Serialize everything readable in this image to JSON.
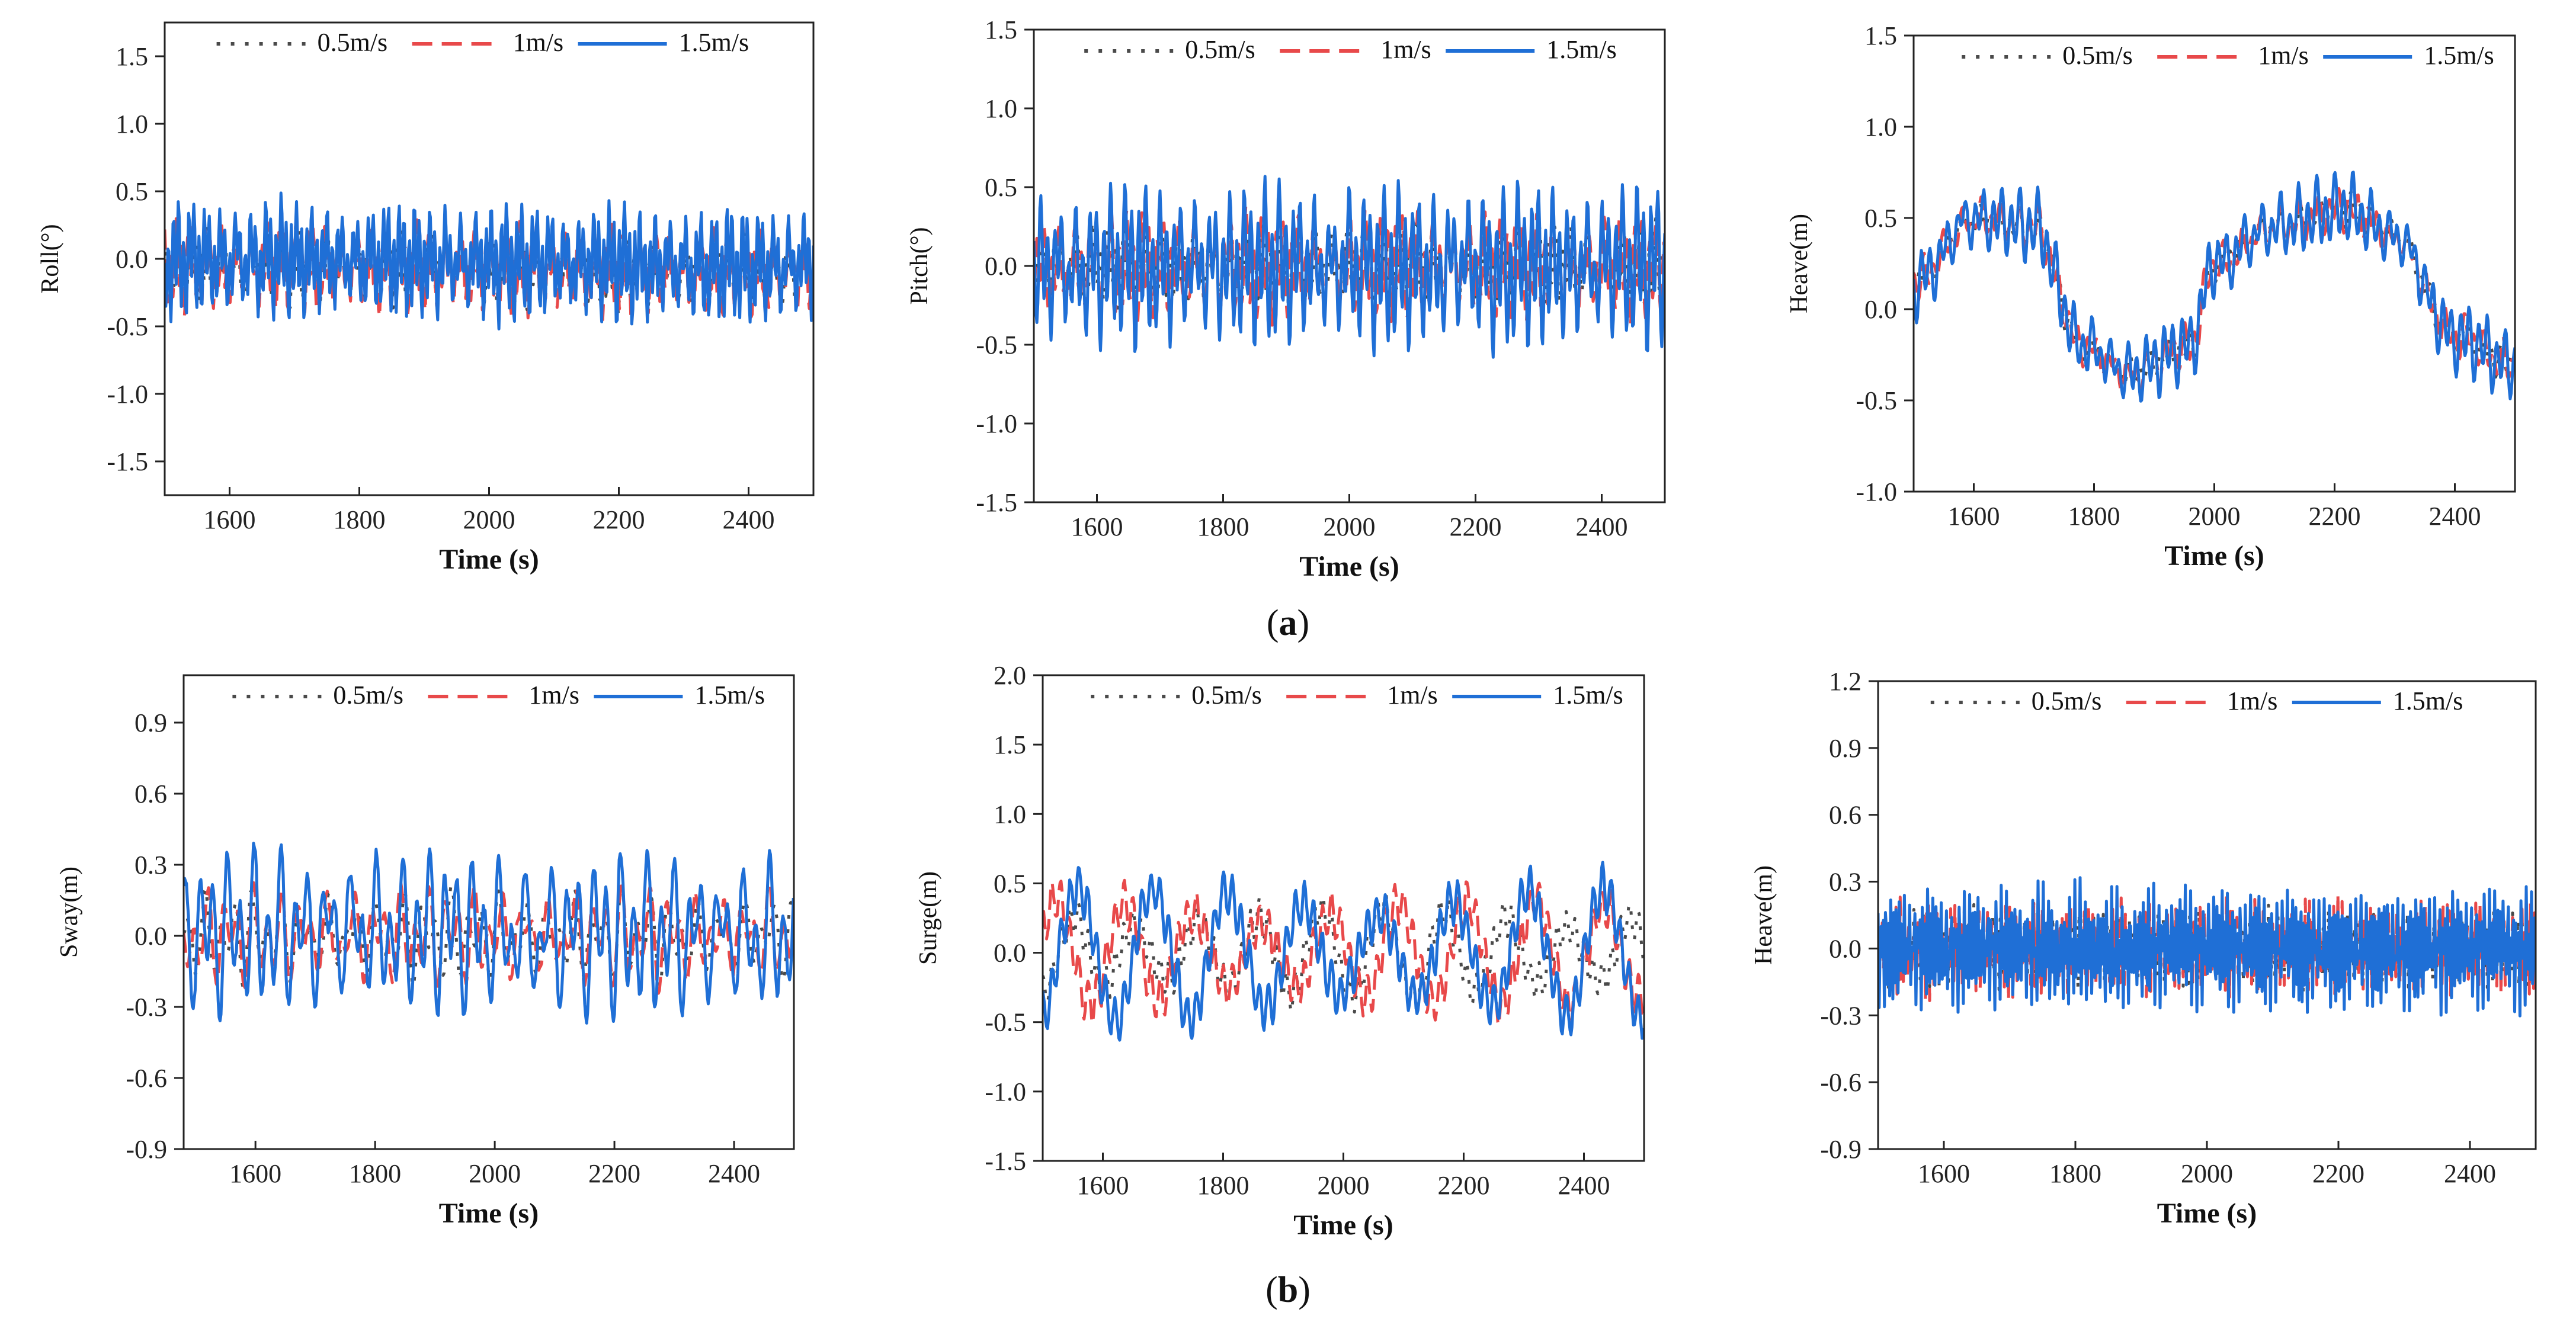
{
  "figure": {
    "caption_a": {
      "open": "(",
      "letter": "a",
      "close": ")"
    },
    "caption_b": {
      "open": "(",
      "letter": "b",
      "close": ")"
    }
  },
  "colors": {
    "s05": "#4a4a4a",
    "s1": "#e8494a",
    "s15": "#1f6fd6"
  },
  "chart_data": [
    {
      "id": "roll",
      "type": "line",
      "xlabel": "Time (s)",
      "ylabel": "Roll(°)",
      "xlim": [
        1500,
        2500
      ],
      "ylim": [
        -1.75,
        1.75
      ],
      "xticks": [
        1600,
        1800,
        2000,
        2200,
        2400
      ],
      "yticks": [
        -1.5,
        -1.0,
        -0.5,
        0.0,
        0.5,
        1.0,
        1.5
      ],
      "ytick_labels": [
        "-1.5",
        "-1.0",
        "-0.5",
        "0.0",
        "0.5",
        "1.0",
        "1.5"
      ],
      "legend": [
        "0.5m/s",
        "1m/s",
        "1.5m/s"
      ],
      "series": [
        {
          "name": "0.5m/s",
          "base": [
            [
              1500,
              -0.05
            ],
            [
              2500,
              -0.1
            ]
          ],
          "waves": [
            [
              0.18,
              9
            ],
            [
              0.12,
              23
            ]
          ],
          "freq": 0.32,
          "seed": 11
        },
        {
          "name": "1m/s",
          "base": [
            [
              1500,
              -0.05
            ],
            [
              2500,
              -0.1
            ]
          ],
          "waves": [
            [
              0.22,
              9
            ],
            [
              0.14,
              23
            ]
          ],
          "freq": 0.34,
          "seed": 23
        },
        {
          "name": "1.5m/s",
          "base": [
            [
              1500,
              0.0
            ],
            [
              2500,
              -0.05
            ]
          ],
          "waves": [
            [
              0.32,
              9
            ],
            [
              0.16,
              23
            ]
          ],
          "freq": 0.38,
          "seed": 37
        }
      ]
    },
    {
      "id": "pitch",
      "type": "line",
      "xlabel": "Time (s)",
      "ylabel": "Pitch(°)",
      "xlim": [
        1500,
        2500
      ],
      "ylim": [
        -1.5,
        1.5
      ],
      "xticks": [
        1600,
        1800,
        2000,
        2200,
        2400
      ],
      "yticks": [
        -1.5,
        -1.0,
        -0.5,
        0.0,
        0.5,
        1.0,
        1.5
      ],
      "ytick_labels": [
        "-1.5",
        "-1.0",
        "-0.5",
        "0.0",
        "0.5",
        "1.0",
        "1.5"
      ],
      "legend": [
        "0.5m/s",
        "1m/s",
        "1.5m/s"
      ],
      "series": [
        {
          "name": "0.5m/s",
          "base": [
            [
              1500,
              0.0
            ],
            [
              2500,
              0.0
            ]
          ],
          "waves": [
            [
              0.2,
              11
            ],
            [
              0.1,
              27
            ]
          ],
          "freq": 0.3,
          "seed": 41
        },
        {
          "name": "1m/s",
          "base": [
            [
              1500,
              0.0
            ],
            [
              2500,
              0.0
            ]
          ],
          "waves": [
            [
              0.25,
              11
            ],
            [
              0.12,
              27
            ]
          ],
          "freq": 0.31,
          "seed": 53
        },
        {
          "name": "1.5m/s",
          "base": [
            [
              1500,
              0.0
            ],
            [
              2500,
              0.0
            ]
          ],
          "waves": [
            [
              0.38,
              11
            ],
            [
              0.18,
              27
            ]
          ],
          "freq": 0.33,
          "seed": 67
        }
      ]
    },
    {
      "id": "heave_a",
      "type": "line",
      "xlabel": "Time (s)",
      "ylabel": "Heave(m)",
      "xlim": [
        1500,
        2500
      ],
      "ylim": [
        -1.0,
        1.5
      ],
      "xticks": [
        1600,
        1800,
        2000,
        2200,
        2400
      ],
      "yticks": [
        -1.0,
        -0.5,
        0.0,
        0.5,
        1.0,
        1.5
      ],
      "ytick_labels": [
        "-1.0",
        "-0.5",
        "0.0",
        "0.5",
        "1.0",
        "1.5"
      ],
      "legend": [
        "0.5m/s",
        "1m/s",
        "1.5m/s"
      ],
      "series": [
        {
          "name": "0.5m/s",
          "base": [
            [
              1500,
              0.15
            ],
            [
              1600,
              0.5
            ],
            [
              1700,
              0.45
            ],
            [
              1780,
              -0.2
            ],
            [
              1860,
              -0.35
            ],
            [
              1960,
              -0.2
            ],
            [
              2000,
              0.25
            ],
            [
              2100,
              0.45
            ],
            [
              2220,
              0.55
            ],
            [
              2300,
              0.4
            ],
            [
              2400,
              -0.15
            ],
            [
              2500,
              -0.3
            ]
          ],
          "waves": [
            [
              0.07,
              13
            ],
            [
              0.04,
              31
            ]
          ],
          "freq": 0.26,
          "seed": 71
        },
        {
          "name": "1m/s",
          "base": [
            [
              1500,
              0.15
            ],
            [
              1600,
              0.5
            ],
            [
              1700,
              0.45
            ],
            [
              1780,
              -0.2
            ],
            [
              1860,
              -0.35
            ],
            [
              1960,
              -0.2
            ],
            [
              2000,
              0.25
            ],
            [
              2100,
              0.45
            ],
            [
              2220,
              0.55
            ],
            [
              2300,
              0.4
            ],
            [
              2400,
              -0.15
            ],
            [
              2500,
              -0.3
            ]
          ],
          "waves": [
            [
              0.09,
              13
            ],
            [
              0.05,
              31
            ]
          ],
          "freq": 0.27,
          "seed": 83
        },
        {
          "name": "1.5m/s",
          "base": [
            [
              1500,
              0.15
            ],
            [
              1600,
              0.5
            ],
            [
              1700,
              0.45
            ],
            [
              1780,
              -0.2
            ],
            [
              1860,
              -0.35
            ],
            [
              1960,
              -0.2
            ],
            [
              2000,
              0.25
            ],
            [
              2100,
              0.45
            ],
            [
              2220,
              0.55
            ],
            [
              2300,
              0.4
            ],
            [
              2400,
              -0.15
            ],
            [
              2500,
              -0.3
            ]
          ],
          "waves": [
            [
              0.15,
              13
            ],
            [
              0.07,
              31
            ]
          ],
          "freq": 0.29,
          "seed": 97
        }
      ]
    },
    {
      "id": "sway",
      "type": "line",
      "xlabel": "Time (s)",
      "ylabel": "Sway(m)",
      "xlim": [
        1480,
        2500
      ],
      "ylim": [
        -0.9,
        1.1
      ],
      "xticks": [
        1600,
        1800,
        2000,
        2200,
        2400
      ],
      "yticks": [
        -0.9,
        -0.6,
        -0.3,
        0.0,
        0.3,
        0.6,
        0.9
      ],
      "ytick_labels": [
        "-0.9",
        "-0.6",
        "-0.3",
        "0.0",
        "0.3",
        "0.6",
        "0.9"
      ],
      "legend": [
        "0.5m/s",
        "1m/s",
        "1.5m/s"
      ],
      "series": [
        {
          "name": "0.5m/s",
          "base": [
            [
              1480,
              0.0
            ],
            [
              2500,
              0.0
            ]
          ],
          "waves": [
            [
              0.12,
              17
            ],
            [
              0.08,
              41
            ]
          ],
          "freq": 0.22,
          "seed": 101
        },
        {
          "name": "1m/s",
          "base": [
            [
              1480,
              0.0
            ],
            [
              2500,
              0.0
            ]
          ],
          "waves": [
            [
              0.14,
              17
            ],
            [
              0.09,
              41
            ]
          ],
          "freq": 0.23,
          "seed": 113
        },
        {
          "name": "1.5m/s",
          "base": [
            [
              1480,
              0.02
            ],
            [
              2500,
              0.0
            ]
          ],
          "waves": [
            [
              0.24,
              17
            ],
            [
              0.14,
              41
            ]
          ],
          "freq": 0.25,
          "seed": 127
        }
      ]
    },
    {
      "id": "surge",
      "type": "line",
      "xlabel": "Time (s)",
      "ylabel": "Surge(m)",
      "xlim": [
        1500,
        2500
      ],
      "ylim": [
        -1.5,
        2.0
      ],
      "xticks": [
        1600,
        1800,
        2000,
        2200,
        2400
      ],
      "yticks": [
        -1.5,
        -1.0,
        -0.5,
        0.0,
        0.5,
        1.0,
        1.5,
        2.0
      ],
      "ytick_labels": [
        "-1.5",
        "-1.0",
        "-0.5",
        "0.0",
        "0.5",
        "1.0",
        "1.5",
        "2.0"
      ],
      "legend": [
        "0.5m/s",
        "1m/s",
        "1.5m/s"
      ],
      "series": [
        {
          "name": "0.5m/s",
          "base": [
            [
              1500,
              0.0
            ],
            [
              2500,
              0.0
            ]
          ],
          "waves": [
            [
              0.32,
              37
            ],
            [
              0.12,
              15
            ]
          ],
          "freq": 0.12,
          "seed": 131
        },
        {
          "name": "1m/s",
          "base": [
            [
              1500,
              0.0
            ],
            [
              2500,
              0.0
            ]
          ],
          "waves": [
            [
              0.38,
              41
            ],
            [
              0.14,
              15
            ]
          ],
          "freq": 0.12,
          "seed": 139
        },
        {
          "name": "1.5m/s",
          "base": [
            [
              1500,
              0.0
            ],
            [
              2500,
              0.0
            ]
          ],
          "waves": [
            [
              0.48,
              45
            ],
            [
              0.15,
              15
            ]
          ],
          "freq": 0.12,
          "seed": 149
        }
      ]
    },
    {
      "id": "heave_b",
      "type": "line",
      "xlabel": "Time (s)",
      "ylabel": "Heave(m)",
      "xlim": [
        1500,
        2500
      ],
      "ylim": [
        -0.9,
        1.2
      ],
      "xticks": [
        1600,
        1800,
        2000,
        2200,
        2400
      ],
      "yticks": [
        -0.9,
        -0.6,
        -0.3,
        0.0,
        0.3,
        0.6,
        0.9,
        1.2
      ],
      "ytick_labels": [
        "-0.9",
        "-0.6",
        "-0.3",
        "0.0",
        "0.3",
        "0.6",
        "0.9",
        "1.2"
      ],
      "legend": [
        "0.5m/s",
        "1m/s",
        "1.5m/s"
      ],
      "series": [
        {
          "name": "0.5m/s",
          "base": [
            [
              1500,
              0.0
            ],
            [
              2500,
              0.0
            ]
          ],
          "waves": [
            [
              0.14,
              3
            ],
            [
              0.06,
              7
            ]
          ],
          "freq": 0.9,
          "seed": 151
        },
        {
          "name": "1m/s",
          "base": [
            [
              1500,
              0.0
            ],
            [
              2500,
              0.0
            ]
          ],
          "waves": [
            [
              0.17,
              3
            ],
            [
              0.07,
              7
            ]
          ],
          "freq": 0.95,
          "seed": 163
        },
        {
          "name": "1.5m/s",
          "base": [
            [
              1500,
              0.0
            ],
            [
              2500,
              0.0
            ]
          ],
          "waves": [
            [
              0.22,
              3
            ],
            [
              0.09,
              7
            ]
          ],
          "freq": 1.0,
          "seed": 173
        }
      ]
    }
  ]
}
